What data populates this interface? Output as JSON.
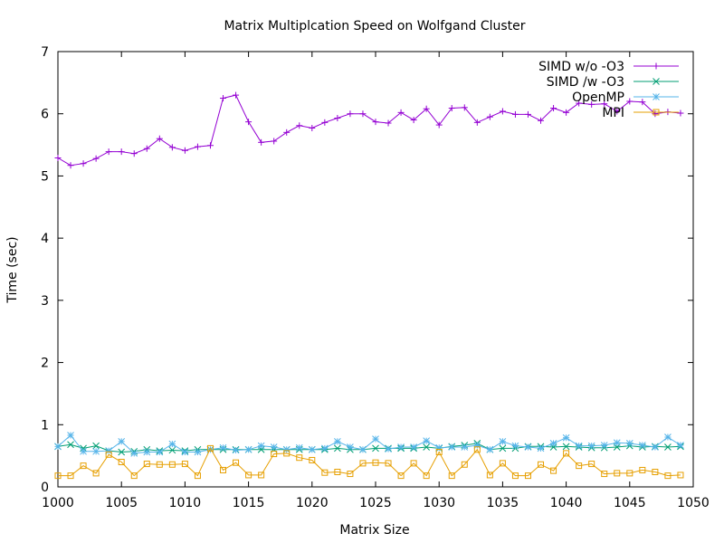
{
  "chart_data": {
    "type": "line",
    "title": "Matrix Multiplcation Speed on Wolfgand Cluster",
    "xlabel": "Matrix Size",
    "ylabel": "Time (sec)",
    "xlim": [
      1000,
      1050
    ],
    "ylim": [
      0,
      7
    ],
    "xticks": [
      1000,
      1005,
      1010,
      1015,
      1020,
      1025,
      1030,
      1035,
      1040,
      1045,
      1050
    ],
    "yticks": [
      0,
      1,
      2,
      3,
      4,
      5,
      6,
      7
    ],
    "grid": false,
    "legend_position": "top-right",
    "x": [
      1000,
      1001,
      1002,
      1003,
      1004,
      1005,
      1006,
      1007,
      1008,
      1009,
      1010,
      1011,
      1012,
      1013,
      1014,
      1015,
      1016,
      1017,
      1018,
      1019,
      1020,
      1021,
      1022,
      1023,
      1024,
      1025,
      1026,
      1027,
      1028,
      1029,
      1030,
      1031,
      1032,
      1033,
      1034,
      1035,
      1036,
      1037,
      1038,
      1039,
      1040,
      1041,
      1042,
      1043,
      1044,
      1045,
      1046,
      1047,
      1048,
      1049
    ],
    "series": [
      {
        "name": "SIMD w/o -O3",
        "color": "#9400d3",
        "marker": "plus",
        "values": [
          5.29,
          5.17,
          5.2,
          5.28,
          5.39,
          5.39,
          5.36,
          5.44,
          5.6,
          5.46,
          5.41,
          5.47,
          5.49,
          6.25,
          6.3,
          5.87,
          5.54,
          5.56,
          5.7,
          5.81,
          5.77,
          5.86,
          5.93,
          6.0,
          6.0,
          5.87,
          5.85,
          6.02,
          5.9,
          6.08,
          5.82,
          6.09,
          6.1,
          5.86,
          5.95,
          6.04,
          5.99,
          5.99,
          5.89,
          6.09,
          6.02,
          6.17,
          6.15,
          6.16,
          6.04,
          6.2,
          6.19,
          6.0,
          6.03,
          6.01
        ]
      },
      {
        "name": "SIMD /w -O3",
        "color": "#009e73",
        "marker": "cross",
        "values": [
          0.65,
          0.68,
          0.62,
          0.66,
          0.58,
          0.56,
          0.57,
          0.6,
          0.58,
          0.59,
          0.58,
          0.6,
          0.6,
          0.6,
          0.6,
          0.6,
          0.6,
          0.6,
          0.6,
          0.6,
          0.6,
          0.6,
          0.62,
          0.6,
          0.6,
          0.62,
          0.62,
          0.62,
          0.62,
          0.64,
          0.62,
          0.65,
          0.67,
          0.7,
          0.6,
          0.62,
          0.62,
          0.65,
          0.65,
          0.64,
          0.65,
          0.64,
          0.63,
          0.63,
          0.64,
          0.66,
          0.64,
          0.65,
          0.64,
          0.65
        ]
      },
      {
        "name": "OpenMP",
        "color": "#56b4e9",
        "marker": "star",
        "values": [
          0.65,
          0.83,
          0.57,
          0.57,
          0.58,
          0.73,
          0.54,
          0.56,
          0.56,
          0.69,
          0.56,
          0.56,
          0.6,
          0.63,
          0.59,
          0.6,
          0.66,
          0.64,
          0.6,
          0.63,
          0.6,
          0.62,
          0.73,
          0.64,
          0.6,
          0.77,
          0.61,
          0.64,
          0.64,
          0.74,
          0.63,
          0.64,
          0.64,
          0.67,
          0.6,
          0.73,
          0.66,
          0.64,
          0.62,
          0.7,
          0.79,
          0.66,
          0.66,
          0.67,
          0.71,
          0.7,
          0.67,
          0.64,
          0.8,
          0.67
        ]
      },
      {
        "name": "MPI",
        "color": "#e69f00",
        "marker": "square",
        "values": [
          0.18,
          0.18,
          0.34,
          0.22,
          0.52,
          0.4,
          0.18,
          0.37,
          0.36,
          0.36,
          0.37,
          0.18,
          0.62,
          0.27,
          0.39,
          0.19,
          0.19,
          0.53,
          0.54,
          0.47,
          0.43,
          0.23,
          0.24,
          0.21,
          0.38,
          0.39,
          0.38,
          0.18,
          0.38,
          0.18,
          0.56,
          0.18,
          0.36,
          0.6,
          0.19,
          0.38,
          0.18,
          0.18,
          0.36,
          0.26,
          0.54,
          0.34,
          0.37,
          0.21,
          0.22,
          0.22,
          0.27,
          0.24,
          0.18,
          0.19
        ]
      }
    ]
  }
}
